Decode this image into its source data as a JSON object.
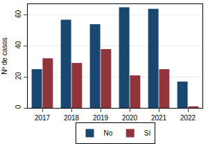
{
  "chart_data": {
    "type": "bar",
    "y_label": "Nº de casos",
    "categories": [
      "2017",
      "2018",
      "2019",
      "2020",
      "2021",
      "2022"
    ],
    "series": [
      {
        "name": "No",
        "color": "#1a476f",
        "values": [
          25,
          57,
          54,
          65,
          64,
          17
        ]
      },
      {
        "name": "Sí",
        "color": "#90353b",
        "values": [
          32,
          29,
          38,
          21,
          25,
          1
        ]
      }
    ],
    "ylim": [
      0,
      67
    ],
    "yticks": [
      0,
      20,
      40,
      60
    ],
    "grid": true,
    "legend": "bottom"
  }
}
